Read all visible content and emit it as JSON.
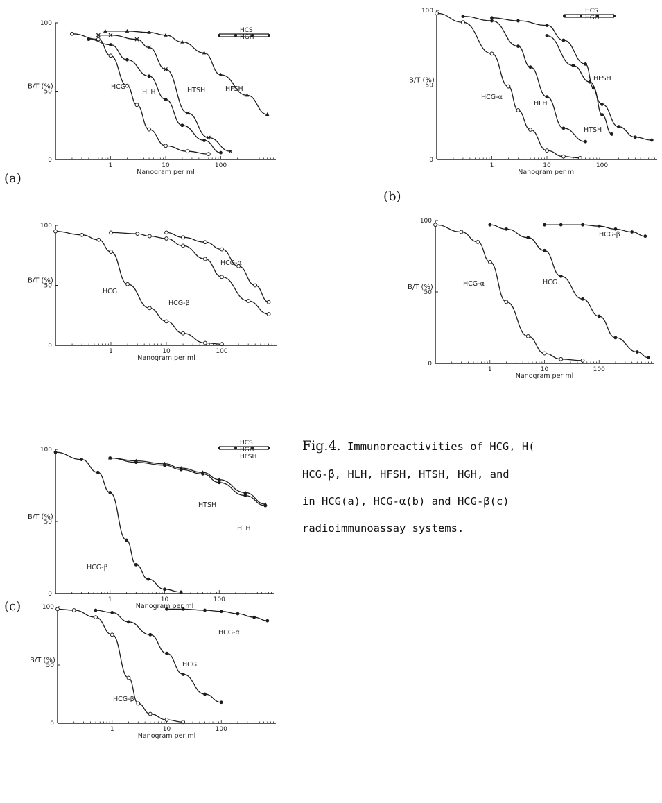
{
  "panel_labels": {
    "a": "(a)",
    "b": "(b)",
    "c": "(c)"
  },
  "caption": {
    "figure_no": "Fig.4.",
    "line1": "Immunoreactivities of HCG, H(",
    "line2": "HCG-β, HLH, HFSH, HTSH, HGH, and",
    "line3": "in HCG(a), HCG-α(b) and HCG-β(c)",
    "line4": "radioimmunoassay systems."
  },
  "chart_data": [
    {
      "id": "a1",
      "type": "line",
      "scale": "log",
      "xlabel": "Nanogram per ml",
      "ylabel": "B/T (%)",
      "xlim": [
        0.1,
        1000
      ],
      "ylim": [
        0,
        100
      ],
      "yticks": [
        "100",
        "50",
        "0"
      ],
      "xticks": [
        "1",
        "10",
        "100"
      ],
      "series": [
        {
          "name": "HCG",
          "marker": "open",
          "x": [
            0.2,
            0.6,
            1.0,
            2.0,
            3.0,
            5.0,
            10,
            25,
            60
          ],
          "y": [
            92,
            88,
            76,
            54,
            40,
            22,
            10,
            6,
            4
          ]
        },
        {
          "name": "HLH",
          "marker": "filled",
          "x": [
            0.4,
            1.0,
            2.0,
            5.0,
            10,
            20,
            50,
            100
          ],
          "y": [
            88,
            84,
            73,
            61,
            44,
            25,
            14,
            5
          ]
        },
        {
          "name": "HTSH",
          "marker": "cross",
          "x": [
            0.6,
            1.0,
            3.0,
            5.0,
            10,
            25,
            60,
            150
          ],
          "y": [
            91,
            91,
            88,
            82,
            66,
            34,
            16,
            6
          ]
        },
        {
          "name": "HFSH",
          "marker": "triangle",
          "x": [
            0.8,
            2.0,
            5.0,
            10,
            20,
            50,
            100,
            300,
            700
          ],
          "y": [
            94,
            94,
            93,
            91,
            86,
            78,
            62,
            47,
            33
          ]
        }
      ],
      "inline_legend": [
        "HCS",
        "HGH"
      ]
    },
    {
      "id": "b1",
      "type": "line",
      "scale": "log",
      "xlabel": "Nanogram per ml",
      "ylabel": "B/T (%)",
      "xlim": [
        0.1,
        1000
      ],
      "ylim": [
        0,
        100
      ],
      "yticks": [
        "100",
        "50",
        "0"
      ],
      "xticks": [
        "1",
        "10",
        "100"
      ],
      "series": [
        {
          "name": "HCG-α",
          "marker": "open",
          "x": [
            0.1,
            0.3,
            1.0,
            2.0,
            3.0,
            5.0,
            10,
            20,
            40
          ],
          "y": [
            98,
            92,
            71,
            49,
            33,
            20,
            6,
            2,
            1
          ]
        },
        {
          "name": "HLH",
          "marker": "filled",
          "x": [
            0.3,
            1.0,
            3.0,
            5.0,
            10,
            20,
            50
          ],
          "y": [
            96,
            93,
            76,
            62,
            42,
            21,
            12
          ]
        },
        {
          "name": "HTSH",
          "marker": "filled",
          "x": [
            1.0,
            3.0,
            10,
            20,
            50,
            70,
            100,
            150
          ],
          "y": [
            95,
            93,
            90,
            80,
            64,
            48,
            30,
            17
          ]
        },
        {
          "name": "HFSH",
          "marker": "filled",
          "x": [
            10,
            30,
            60,
            100,
            200,
            400,
            800
          ],
          "y": [
            83,
            63,
            52,
            37,
            22,
            15,
            13
          ]
        }
      ],
      "inline_legend": [
        "HCS",
        "HGH"
      ]
    },
    {
      "id": "a2",
      "type": "line",
      "scale": "log",
      "xlabel": "Nanogram per ml",
      "ylabel": "B/T (%)",
      "xlim": [
        0.1,
        1000
      ],
      "ylim": [
        0,
        100
      ],
      "yticks": [
        "100",
        "50",
        "0"
      ],
      "xticks": [
        "1",
        "10",
        "100"
      ],
      "series": [
        {
          "name": "HCG",
          "marker": "open",
          "x": [
            0.1,
            0.3,
            0.6,
            1.0,
            2.0,
            5.0,
            10,
            20,
            50,
            100
          ],
          "y": [
            95,
            92,
            88,
            78,
            51,
            31,
            20,
            10,
            2,
            1
          ]
        },
        {
          "name": "HCG-β",
          "marker": "open",
          "x": [
            1.0,
            3.0,
            5.0,
            10,
            20,
            50,
            100,
            300,
            700
          ],
          "y": [
            94,
            93,
            91,
            89,
            83,
            72,
            57,
            37,
            26
          ]
        },
        {
          "name": "HCG-α",
          "marker": "open",
          "x": [
            10,
            20,
            50,
            100,
            200,
            400,
            700
          ],
          "y": [
            94,
            90,
            86,
            80,
            66,
            50,
            36
          ]
        }
      ]
    },
    {
      "id": "b2",
      "type": "line",
      "scale": "log",
      "xlabel": "Nanogram per ml",
      "ylabel": "B/T (%)",
      "xlim": [
        0.1,
        1000
      ],
      "ylim": [
        0,
        100
      ],
      "yticks": [
        "100",
        "50",
        "0"
      ],
      "xticks": [
        "1",
        "10",
        "100"
      ],
      "series": [
        {
          "name": "HCG-α",
          "marker": "open",
          "x": [
            0.1,
            0.3,
            0.6,
            1.0,
            2.0,
            5.0,
            10,
            20,
            50
          ],
          "y": [
            97,
            92,
            85,
            71,
            43,
            19,
            7,
            3,
            2
          ]
        },
        {
          "name": "HCG",
          "marker": "filled",
          "x": [
            1.0,
            2.0,
            5.0,
            10,
            20,
            50,
            100,
            200,
            500,
            800
          ],
          "y": [
            97,
            94,
            88,
            79,
            61,
            45,
            33,
            18,
            8,
            4
          ]
        },
        {
          "name": "HCG-β",
          "marker": "filled",
          "x": [
            10,
            20,
            50,
            100,
            200,
            400,
            700
          ],
          "y": [
            97,
            97,
            97,
            96,
            94,
            92,
            89
          ]
        }
      ]
    },
    {
      "id": "c1",
      "type": "line",
      "scale": "log",
      "xlabel": "Nanogram per ml",
      "ylabel": "B/T (%)",
      "xlim": [
        0.1,
        1000
      ],
      "ylim": [
        0,
        100
      ],
      "yticks": [
        "100",
        "50",
        "0"
      ],
      "xticks": [
        "1",
        "10",
        "100"
      ],
      "series": [
        {
          "name": "HCG-β",
          "marker": "filled",
          "x": [
            0.1,
            0.3,
            0.6,
            1.0,
            2.0,
            3.0,
            5.0,
            10,
            20
          ],
          "y": [
            98,
            93,
            84,
            70,
            37,
            20,
            10,
            3,
            1
          ]
        },
        {
          "name": "HTSH",
          "marker": "triangle",
          "x": [
            1.0,
            3.0,
            10,
            20,
            50,
            100,
            300,
            700
          ],
          "y": [
            94,
            92,
            90,
            87,
            84,
            79,
            70,
            62
          ]
        },
        {
          "name": "HLH",
          "marker": "filled",
          "x": [
            1.0,
            3.0,
            10,
            20,
            50,
            100,
            300,
            700
          ],
          "y": [
            94,
            91,
            89,
            86,
            83,
            77,
            68,
            61
          ]
        }
      ],
      "inline_legend": [
        "HCS",
        "HGH",
        "HFSH"
      ]
    },
    {
      "id": "c2",
      "type": "line",
      "scale": "log",
      "xlabel": "Nanogram per ml",
      "ylabel": "B/T (%)",
      "xlim": [
        0.1,
        1000
      ],
      "ylim": [
        0,
        100
      ],
      "yticks": [
        "100",
        "50",
        "0"
      ],
      "xticks": [
        "1",
        "10",
        "100"
      ],
      "series": [
        {
          "name": "HCG-β",
          "marker": "open",
          "x": [
            0.1,
            0.2,
            0.5,
            1.0,
            2.0,
            3.0,
            5.0,
            10,
            20
          ],
          "y": [
            98,
            97,
            91,
            76,
            39,
            17,
            8,
            3,
            1
          ]
        },
        {
          "name": "HCG",
          "marker": "filled",
          "x": [
            0.5,
            1.0,
            2.0,
            5.0,
            10,
            20,
            50,
            100
          ],
          "y": [
            97,
            95,
            87,
            76,
            60,
            42,
            25,
            18
          ]
        },
        {
          "name": "HCG-α",
          "marker": "filled",
          "x": [
            10,
            20,
            50,
            100,
            200,
            400,
            700
          ],
          "y": [
            98,
            98,
            97,
            96,
            94,
            91,
            88
          ]
        }
      ]
    }
  ]
}
